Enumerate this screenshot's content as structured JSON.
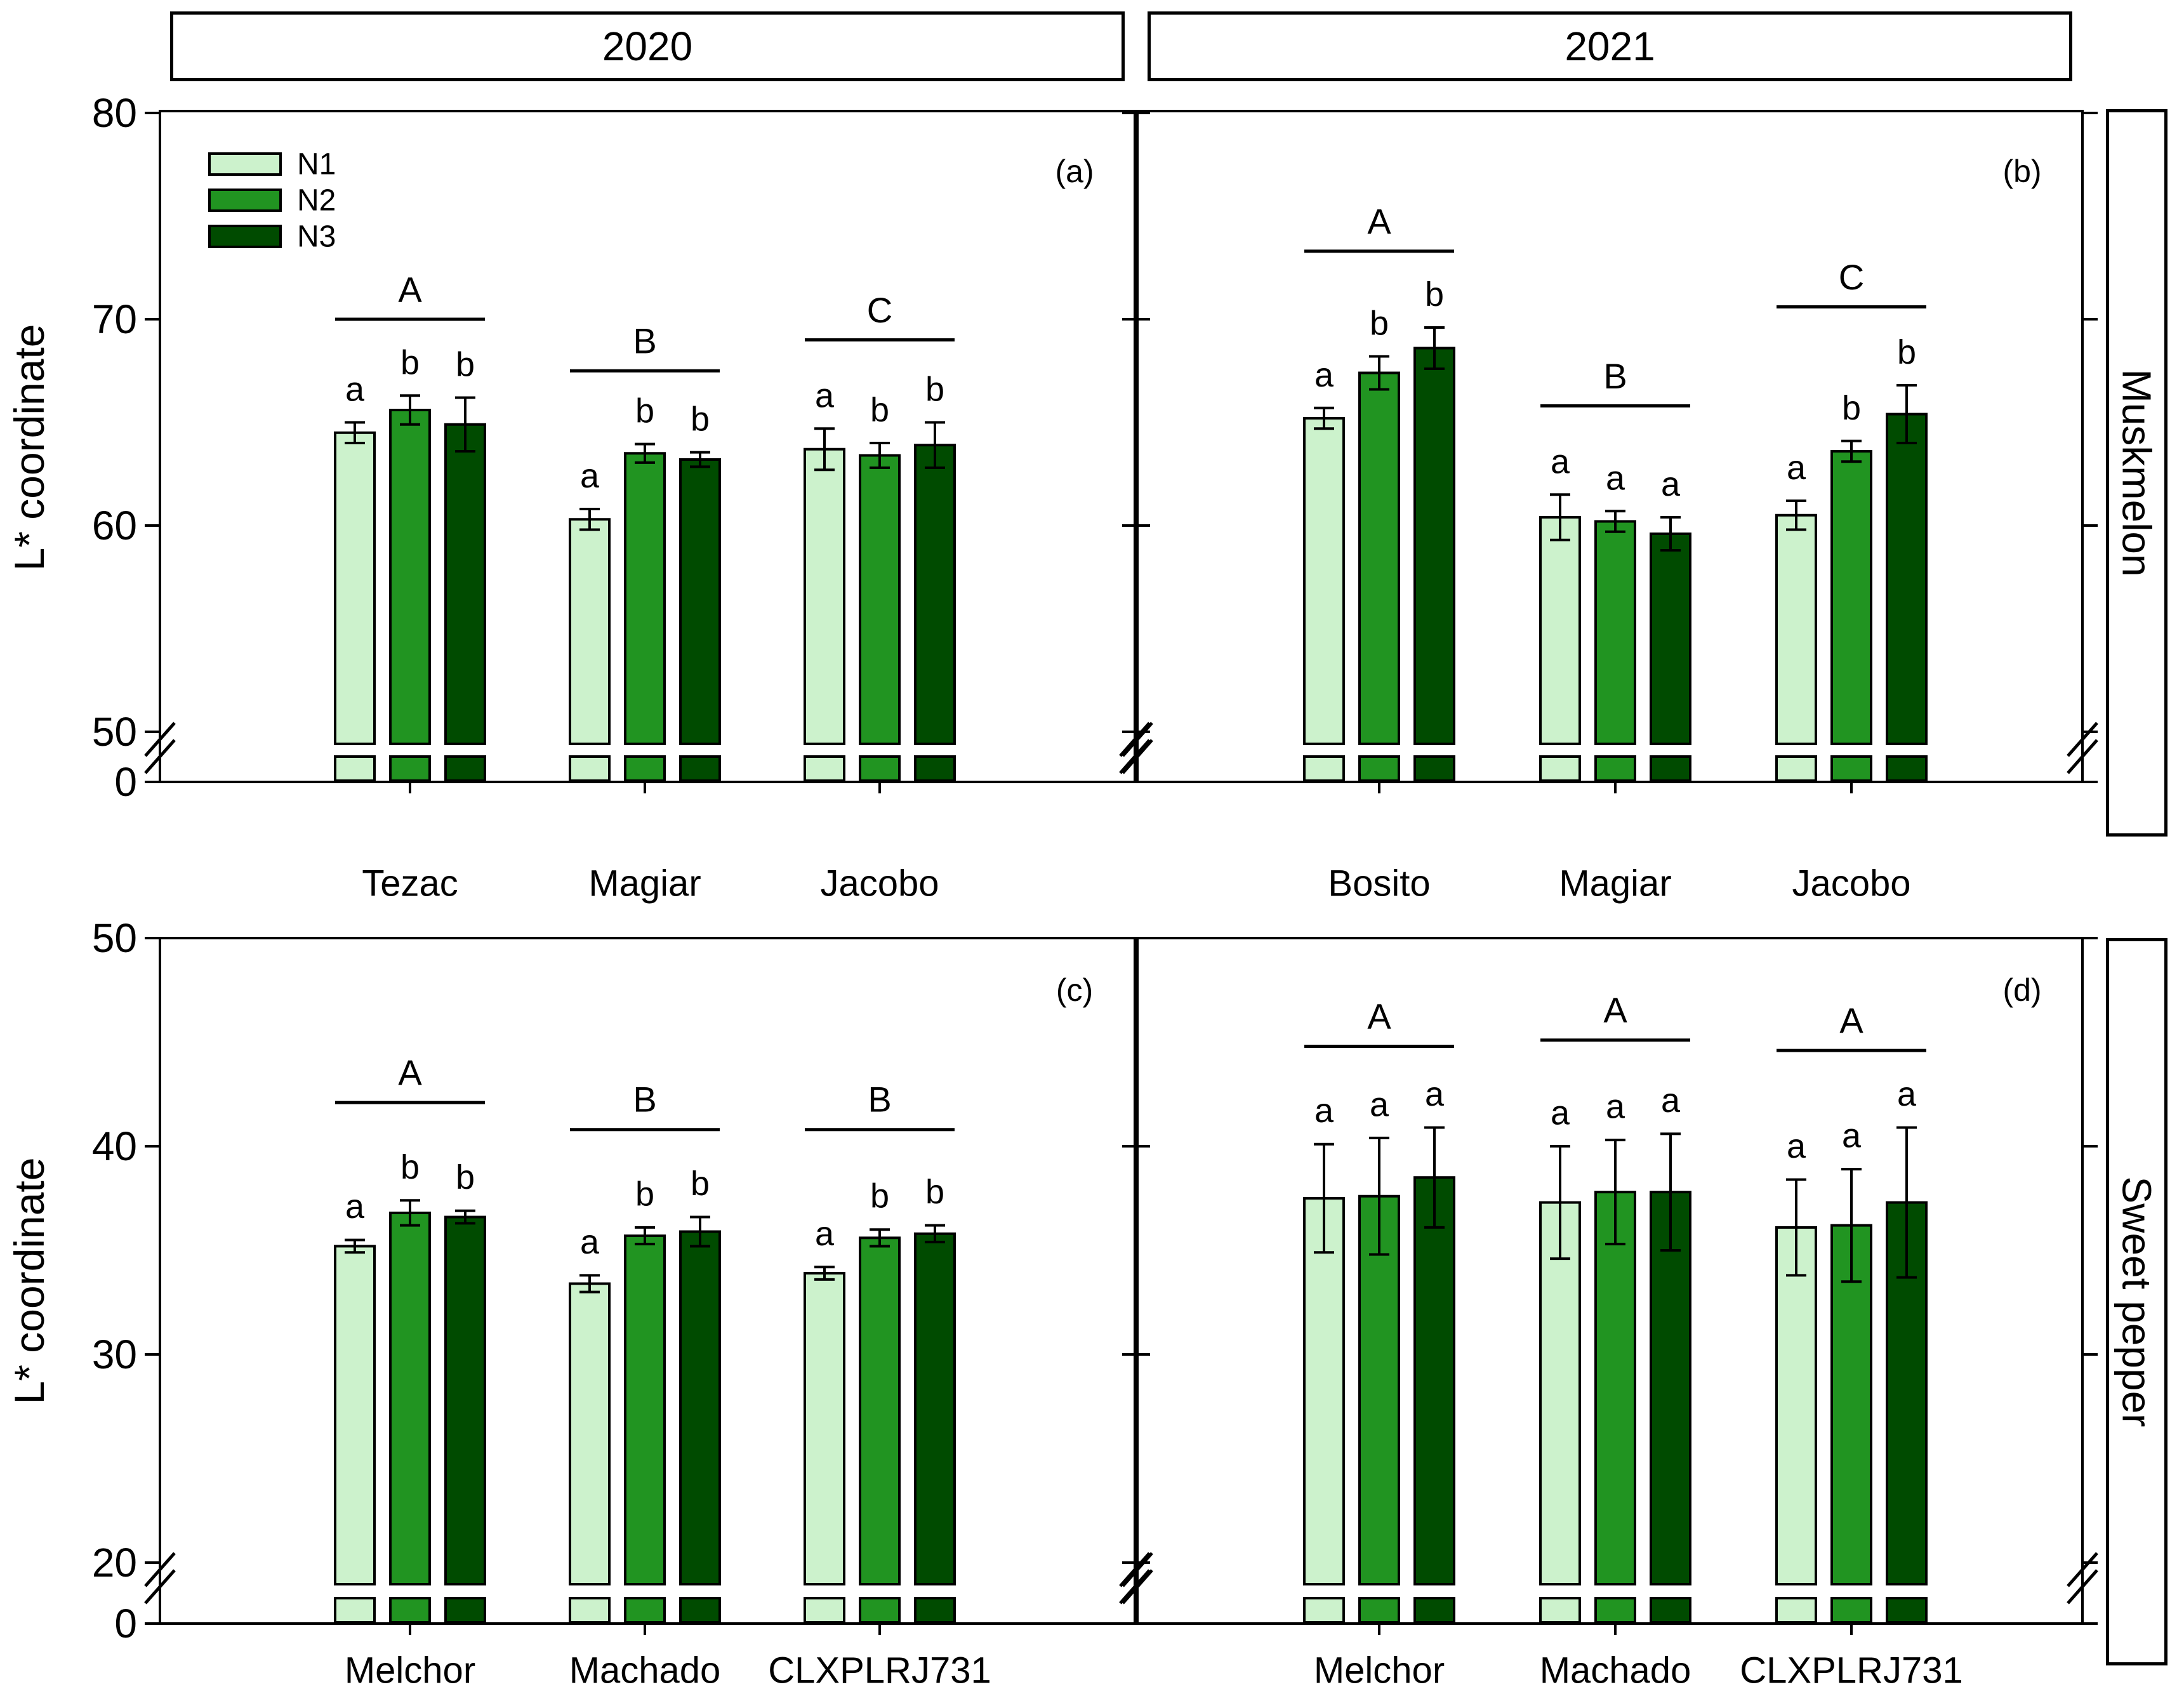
{
  "figure": {
    "column_headers": [
      {
        "label": "2020"
      },
      {
        "label": "2021"
      }
    ],
    "row_labels": [
      "Muskmelon",
      "Sweet pepper"
    ],
    "y_axis_title": "L* coordinate",
    "legend": {
      "entries": [
        {
          "label": "N1",
          "color": "#ccf2cc"
        },
        {
          "label": "N2",
          "color": "#219421"
        },
        {
          "label": "N3",
          "color": "#004b00"
        }
      ]
    },
    "colors": {
      "outline": "#000000",
      "background": "#ffffff"
    }
  },
  "chart_data": [
    {
      "type": "bar",
      "panel_label": "(a)",
      "year": "2020",
      "crop": "Muskmelon",
      "ylabel": "L* coordinate",
      "y_ticks": [
        80,
        70,
        60,
        50,
        0
      ],
      "ylim_display": [
        50,
        80
      ],
      "axis_break": true,
      "show_legend": true,
      "categories": [
        "Tezac",
        "Magiar",
        "Jacobo"
      ],
      "series": [
        {
          "name": "N1",
          "values": [
            64.5,
            60.3,
            63.7
          ],
          "errors": [
            0.5,
            0.5,
            1.0
          ],
          "letters": [
            "a",
            "a",
            "a"
          ]
        },
        {
          "name": "N2",
          "values": [
            65.6,
            63.5,
            63.4
          ],
          "errors": [
            0.7,
            0.45,
            0.6
          ],
          "letters": [
            "b",
            "b",
            "b"
          ]
        },
        {
          "name": "N3",
          "values": [
            64.9,
            63.2,
            63.9
          ],
          "errors": [
            1.3,
            0.35,
            1.1
          ],
          "letters": [
            "b",
            "b",
            "b"
          ]
        }
      ],
      "group_significance": [
        {
          "letter": "A",
          "line_y": 70.0
        },
        {
          "letter": "B",
          "line_y": 67.5
        },
        {
          "letter": "C",
          "line_y": 69.0
        }
      ]
    },
    {
      "type": "bar",
      "panel_label": "(b)",
      "year": "2021",
      "crop": "Muskmelon",
      "ylabel": "L* coordinate",
      "y_ticks": [
        80,
        70,
        60,
        50,
        0
      ],
      "ylim_display": [
        50,
        80
      ],
      "axis_break": true,
      "show_legend": false,
      "categories": [
        "Bosito",
        "Magiar",
        "Jacobo"
      ],
      "series": [
        {
          "name": "N1",
          "values": [
            65.2,
            60.4,
            60.5
          ],
          "errors": [
            0.5,
            1.1,
            0.7
          ],
          "letters": [
            "a",
            "a",
            "a"
          ]
        },
        {
          "name": "N2",
          "values": [
            67.4,
            60.2,
            63.6
          ],
          "errors": [
            0.8,
            0.5,
            0.5
          ],
          "letters": [
            "b",
            "a",
            "b"
          ]
        },
        {
          "name": "N3",
          "values": [
            68.6,
            59.6,
            65.4
          ],
          "errors": [
            1.0,
            0.8,
            1.4
          ],
          "letters": [
            "b",
            "a",
            "b"
          ]
        }
      ],
      "group_significance": [
        {
          "letter": "A",
          "line_y": 73.3
        },
        {
          "letter": "B",
          "line_y": 65.8
        },
        {
          "letter": "C",
          "line_y": 70.6
        }
      ]
    },
    {
      "type": "bar",
      "panel_label": "(c)",
      "year": "2020",
      "crop": "Sweet pepper",
      "ylabel": "L* coordinate",
      "y_ticks": [
        50,
        40,
        30,
        20,
        0
      ],
      "ylim_display": [
        20,
        50
      ],
      "axis_break": true,
      "show_legend": false,
      "categories": [
        "Melchor",
        "Machado",
        "CLXPLRJ731"
      ],
      "series": [
        {
          "name": "N1",
          "values": [
            35.2,
            33.4,
            33.9
          ],
          "errors": [
            0.3,
            0.4,
            0.3
          ],
          "letters": [
            "a",
            "a",
            "a"
          ]
        },
        {
          "name": "N2",
          "values": [
            36.8,
            35.7,
            35.6
          ],
          "errors": [
            0.6,
            0.4,
            0.4
          ],
          "letters": [
            "b",
            "b",
            "b"
          ]
        },
        {
          "name": "N3",
          "values": [
            36.6,
            35.9,
            35.8
          ],
          "errors": [
            0.3,
            0.7,
            0.4
          ],
          "letters": [
            "b",
            "b",
            "b"
          ]
        }
      ],
      "group_significance": [
        {
          "letter": "A",
          "line_y": 42.1
        },
        {
          "letter": "B",
          "line_y": 40.8
        },
        {
          "letter": "B",
          "line_y": 40.8
        }
      ]
    },
    {
      "type": "bar",
      "panel_label": "(d)",
      "year": "2021",
      "crop": "Sweet pepper",
      "ylabel": "L* coordinate",
      "y_ticks": [
        50,
        40,
        30,
        20,
        0
      ],
      "ylim_display": [
        20,
        50
      ],
      "axis_break": true,
      "show_legend": false,
      "categories": [
        "Melchor",
        "Machado",
        "CLXPLRJ731"
      ],
      "series": [
        {
          "name": "N1",
          "values": [
            37.5,
            37.3,
            36.1
          ],
          "errors": [
            2.6,
            2.7,
            2.3
          ],
          "letters": [
            "a",
            "a",
            "a"
          ]
        },
        {
          "name": "N2",
          "values": [
            37.6,
            37.8,
            36.2
          ],
          "errors": [
            2.8,
            2.5,
            2.7
          ],
          "letters": [
            "a",
            "a",
            "a"
          ]
        },
        {
          "name": "N3",
          "values": [
            38.5,
            37.8,
            37.3
          ],
          "errors": [
            2.4,
            2.8,
            3.6
          ],
          "letters": [
            "a",
            "a",
            "a"
          ]
        }
      ],
      "group_significance": [
        {
          "letter": "A",
          "line_y": 44.8
        },
        {
          "letter": "A",
          "line_y": 45.1
        },
        {
          "letter": "A",
          "line_y": 44.6
        }
      ]
    }
  ]
}
